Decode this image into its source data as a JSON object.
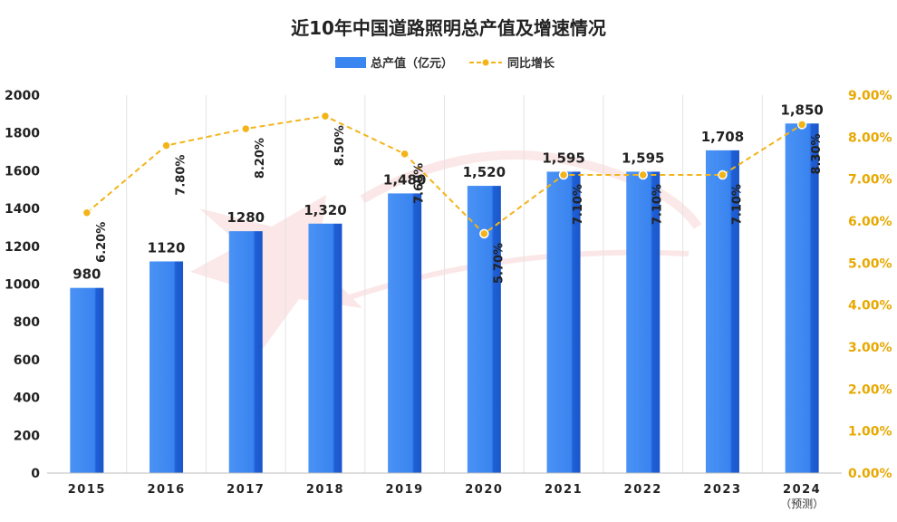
{
  "chart_data": {
    "type": "bar",
    "title": "近10年中国道路照明总产值及增速情况",
    "categories": [
      "2015",
      "2016",
      "2017",
      "2018",
      "2019",
      "2020",
      "2021",
      "2022",
      "2023",
      "2024"
    ],
    "category_notes": [
      "",
      "",
      "",
      "",
      "",
      "",
      "",
      "",
      "",
      "（预测）"
    ],
    "series": [
      {
        "name": "总产值（亿元）",
        "type": "bar",
        "axis": "left",
        "color": "#3a86f0",
        "values": [
          980,
          1120,
          1280,
          1320,
          1480,
          1520,
          1595,
          1595,
          1708,
          1850
        ],
        "labels": [
          "980",
          "1120",
          "1280",
          "1,320",
          "1,480",
          "1,520",
          "1,595",
          "1,595",
          "1,708",
          "1,850"
        ]
      },
      {
        "name": "同比增长",
        "type": "line",
        "axis": "right",
        "color": "#f2b418",
        "values": [
          6.2,
          7.8,
          8.2,
          8.5,
          7.6,
          5.7,
          7.1,
          7.1,
          7.1,
          8.3
        ],
        "labels": [
          "6.20%",
          "7.80%",
          "8.20%",
          "8.50%",
          "7.60%",
          "5.70%",
          "7.10%",
          "7.10%",
          "7.10%",
          "8.30%"
        ]
      }
    ],
    "y_left": {
      "range": [
        0,
        2000
      ],
      "ticks": [
        "0",
        "200",
        "400",
        "600",
        "800",
        "1000",
        "1200",
        "1400",
        "1600",
        "1800",
        "2000"
      ]
    },
    "y_right": {
      "range": [
        0,
        9
      ],
      "ticks": [
        "0.00%",
        "1.00%",
        "2.00%",
        "3.00%",
        "4.00%",
        "5.00%",
        "6.00%",
        "7.00%",
        "8.00%",
        "9.00%"
      ]
    },
    "legend_position": "top",
    "grid": "vertical"
  }
}
